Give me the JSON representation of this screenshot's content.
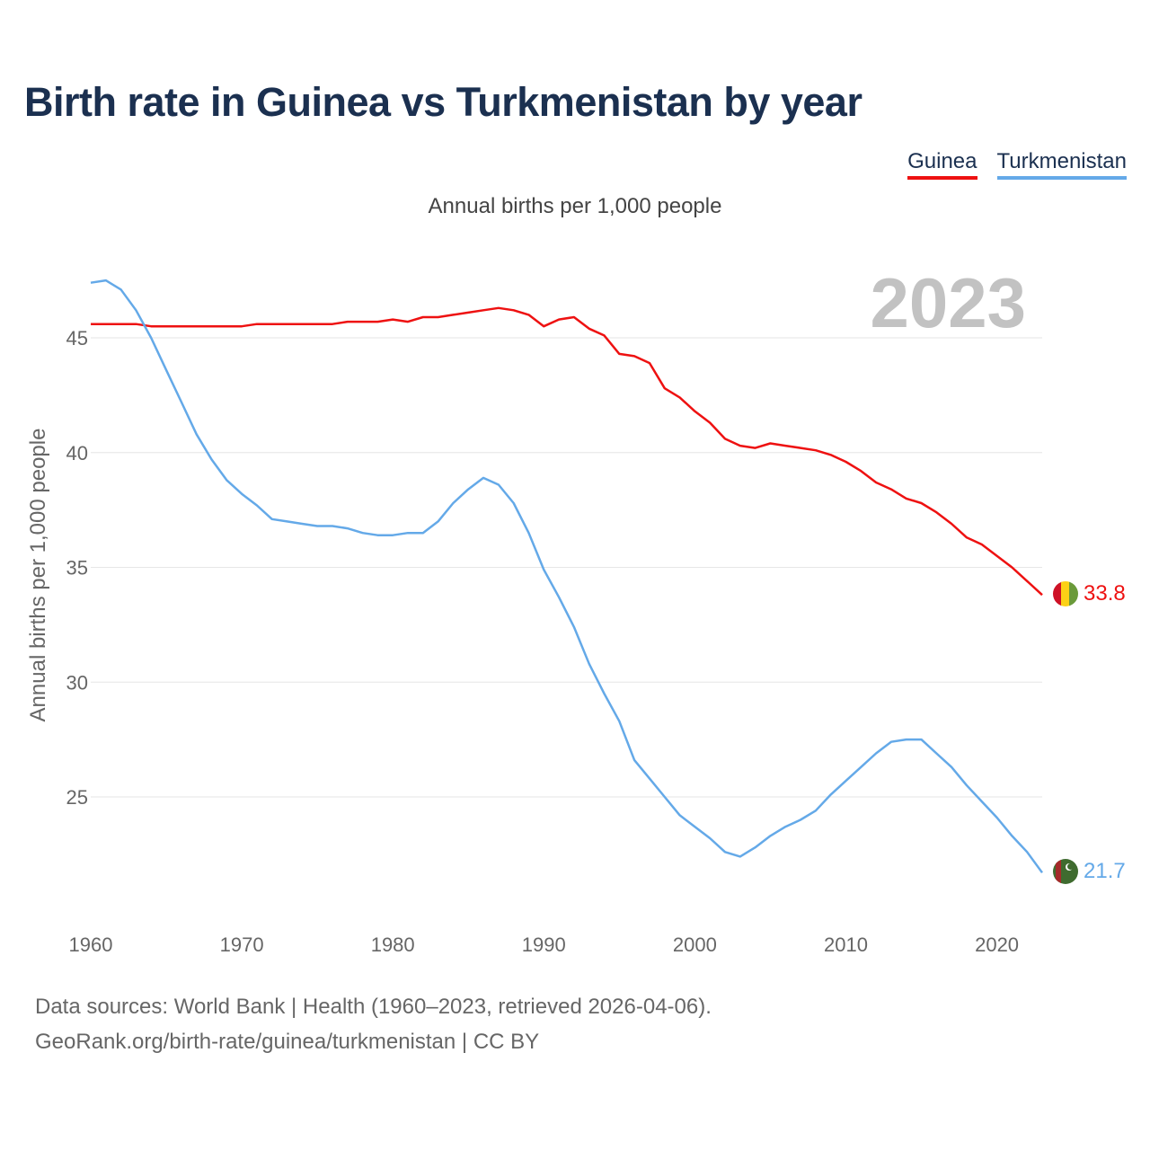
{
  "title": "Birth rate in Guinea vs Turkmenistan by year",
  "subtitle": "Annual births per 1,000 people",
  "year_label": "2023",
  "legend": [
    {
      "name": "Guinea",
      "color": "#ee1111"
    },
    {
      "name": "Turkmenistan",
      "color": "#64a9e8"
    }
  ],
  "footer": {
    "line1": "Data sources: World Bank | Health (1960–2023, retrieved 2026-04-06).",
    "line2": "GeoRank.org/birth-rate/guinea/turkmenistan | CC BY"
  },
  "chart_data": {
    "type": "line",
    "title": "Birth rate in Guinea vs Turkmenistan by year",
    "xlabel": "",
    "ylabel": "Annual births per 1,000 people",
    "xlim": [
      1960,
      2023
    ],
    "ylim": [
      21,
      47.6
    ],
    "xticks": [
      1960,
      1970,
      1980,
      1990,
      2000,
      2010,
      2020
    ],
    "yticks": [
      25,
      30,
      35,
      40,
      45
    ],
    "grid": true,
    "x": [
      1960,
      1961,
      1962,
      1963,
      1964,
      1965,
      1966,
      1967,
      1968,
      1969,
      1970,
      1971,
      1972,
      1973,
      1974,
      1975,
      1976,
      1977,
      1978,
      1979,
      1980,
      1981,
      1982,
      1983,
      1984,
      1985,
      1986,
      1987,
      1988,
      1989,
      1990,
      1991,
      1992,
      1993,
      1994,
      1995,
      1996,
      1997,
      1998,
      1999,
      2000,
      2001,
      2002,
      2003,
      2004,
      2005,
      2006,
      2007,
      2008,
      2009,
      2010,
      2011,
      2012,
      2013,
      2014,
      2015,
      2016,
      2017,
      2018,
      2019,
      2020,
      2021,
      2022,
      2023
    ],
    "series": [
      {
        "name": "Guinea",
        "color": "#ee1111",
        "end_label": "33.8",
        "values": [
          45.6,
          45.6,
          45.6,
          45.6,
          45.5,
          45.5,
          45.5,
          45.5,
          45.5,
          45.5,
          45.5,
          45.6,
          45.6,
          45.6,
          45.6,
          45.6,
          45.6,
          45.7,
          45.7,
          45.7,
          45.8,
          45.7,
          45.9,
          45.9,
          46.0,
          46.1,
          46.2,
          46.3,
          46.2,
          46.0,
          45.5,
          45.8,
          45.9,
          45.4,
          45.1,
          44.3,
          44.2,
          43.9,
          42.8,
          42.4,
          41.8,
          41.3,
          40.6,
          40.3,
          40.2,
          40.4,
          40.3,
          40.2,
          40.1,
          39.9,
          39.6,
          39.2,
          38.7,
          38.4,
          38.0,
          37.8,
          37.4,
          36.9,
          36.3,
          36.0,
          35.5,
          35.0,
          34.4,
          33.8
        ]
      },
      {
        "name": "Turkmenistan",
        "color": "#64a9e8",
        "end_label": "21.7",
        "values": [
          47.4,
          47.5,
          47.1,
          46.2,
          45.0,
          43.6,
          42.2,
          40.8,
          39.7,
          38.8,
          38.2,
          37.7,
          37.1,
          37.0,
          36.9,
          36.8,
          36.8,
          36.7,
          36.5,
          36.4,
          36.4,
          36.5,
          36.5,
          37.0,
          37.8,
          38.4,
          38.9,
          38.6,
          37.8,
          36.5,
          34.9,
          33.7,
          32.4,
          30.8,
          29.5,
          28.3,
          26.6,
          25.8,
          25.0,
          24.2,
          23.7,
          23.2,
          22.6,
          22.4,
          22.8,
          23.3,
          23.7,
          24.0,
          24.4,
          25.1,
          25.7,
          26.3,
          26.9,
          27.4,
          27.5,
          27.5,
          26.9,
          26.3,
          25.5,
          24.8,
          24.1,
          23.3,
          22.6,
          21.7
        ]
      }
    ]
  }
}
